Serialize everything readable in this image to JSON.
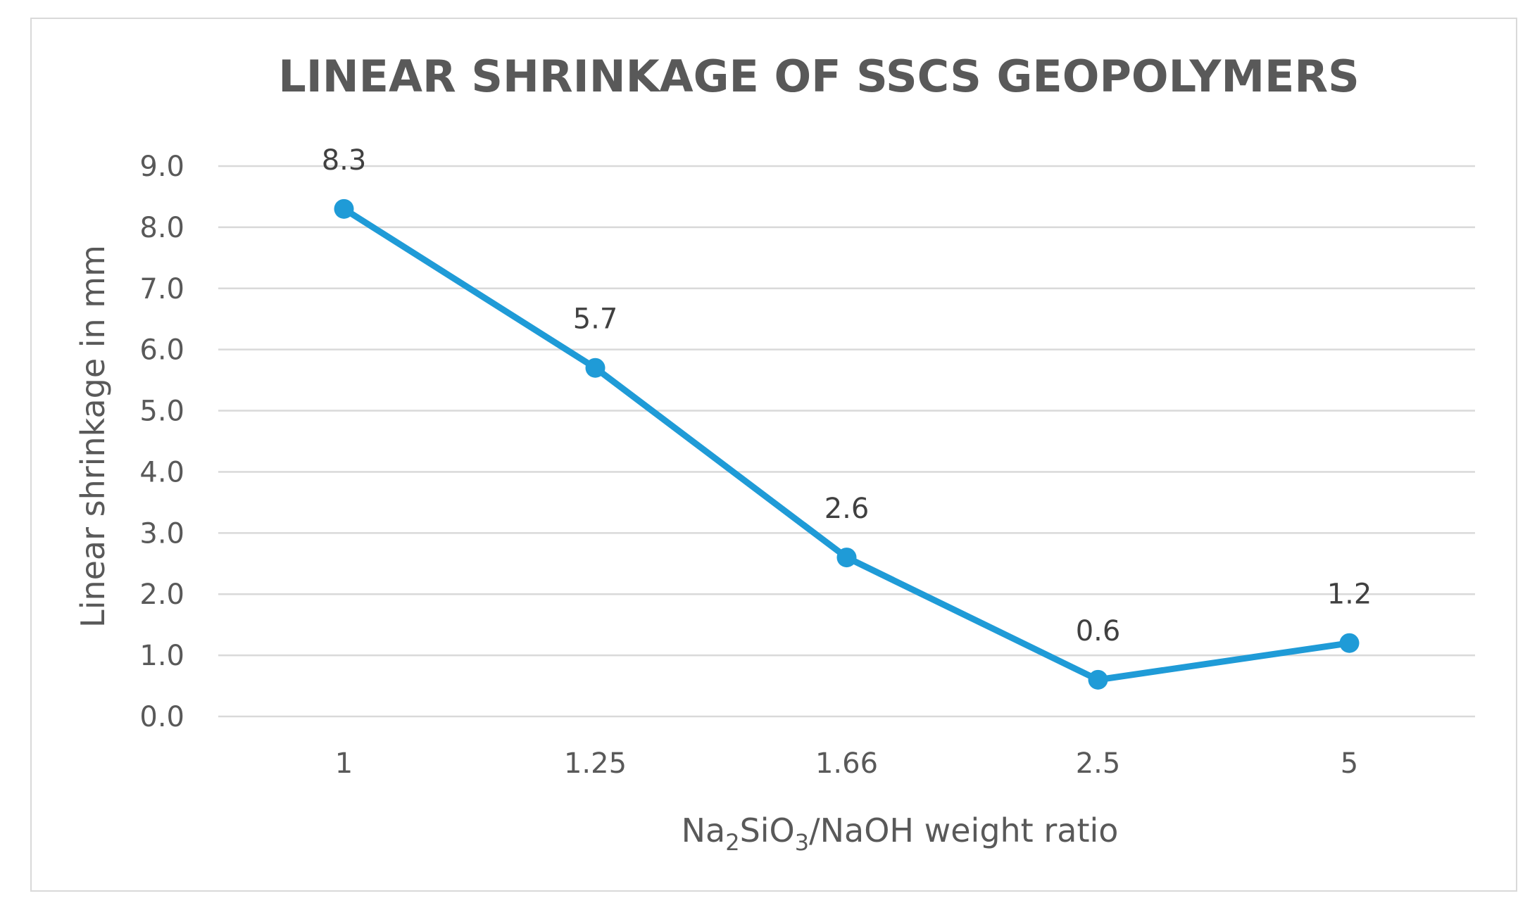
{
  "chart_data": {
    "type": "line",
    "title": "LINEAR SHRINKAGE OF SSCS GEOPOLYMERS",
    "categories": [
      "1",
      "1.25",
      "1.66",
      "2.5",
      "5"
    ],
    "series": [
      {
        "name": "Linear shrinkage",
        "values": [
          8.3,
          5.7,
          2.6,
          0.6,
          1.2
        ],
        "data_labels": [
          "8.3",
          "5.7",
          "2.6",
          "0.6",
          "1.2"
        ],
        "color": "#1f9bd7"
      }
    ],
    "xlabel": {
      "pre": "Na",
      "sub1": "2",
      "mid": "SiO",
      "sub2": "3",
      "post": "/NaOH weight ratio"
    },
    "ylabel": "Linear shrinkage in mm",
    "ylim": [
      0,
      9
    ],
    "yticks": [
      0,
      1,
      2,
      3,
      4,
      5,
      6,
      7,
      8,
      9
    ],
    "ytick_labels": [
      "0.0",
      "1.0",
      "2.0",
      "3.0",
      "4.0",
      "5.0",
      "6.0",
      "7.0",
      "8.0",
      "9.0"
    ],
    "grid": true,
    "legend": "none",
    "colors": {
      "series": "#1f9bd7",
      "grid": "#d9d9d9",
      "text": "#595959"
    }
  }
}
